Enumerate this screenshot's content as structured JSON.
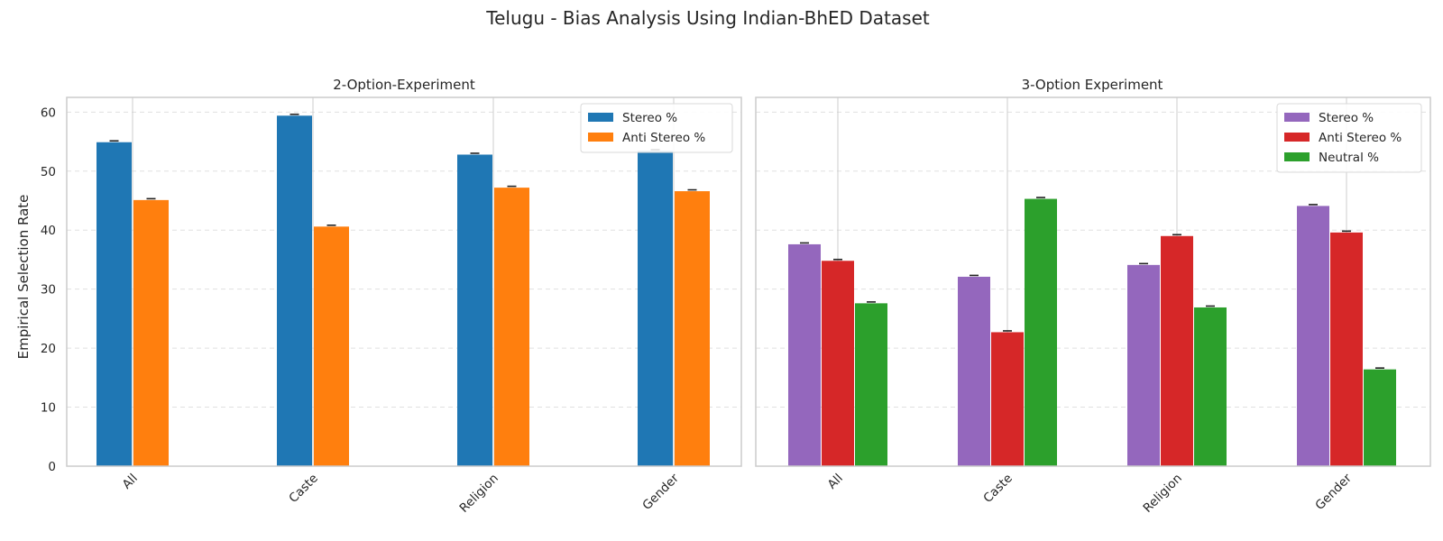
{
  "figure": {
    "title": "Telugu - Bias Analysis Using Indian-BhED Dataset",
    "ylabel": "Empirical Selection Rate"
  },
  "colors": {
    "stereo_2": "#1f77b4",
    "anti_2": "#ff7f0e",
    "stereo_3": "#9467bd",
    "anti_3": "#d62728",
    "neutral_3": "#2ca02c",
    "grid": "#e0e0e0",
    "spine": "#cccccc",
    "errorbar": "#222222"
  },
  "chart_data": [
    {
      "type": "bar",
      "title": "2-Option-Experiment",
      "xlabel": "",
      "ylabel": "Empirical Selection Rate",
      "categories": [
        "All",
        "Caste",
        "Religion",
        "Gender"
      ],
      "series": [
        {
          "name": "Stereo %",
          "values": [
            54.9,
            59.4,
            52.8,
            53.4
          ],
          "color_key": "stereo_2"
        },
        {
          "name": "Anti Stereo %",
          "values": [
            45.1,
            40.6,
            47.2,
            46.6
          ],
          "color_key": "anti_2"
        }
      ],
      "ylim": [
        0,
        62.5
      ],
      "yticks": [
        0,
        10,
        20,
        30,
        40,
        50,
        60
      ],
      "grid": "horizontal dashed",
      "legend": "top-right"
    },
    {
      "type": "bar",
      "title": "3-Option Experiment",
      "xlabel": "",
      "ylabel": "",
      "categories": [
        "All",
        "Caste",
        "Religion",
        "Gender"
      ],
      "series": [
        {
          "name": "Stereo %",
          "values": [
            37.6,
            32.1,
            34.1,
            44.1
          ],
          "color_key": "stereo_3"
        },
        {
          "name": "Anti Stereo %",
          "values": [
            34.8,
            22.7,
            39.0,
            39.6
          ],
          "color_key": "anti_3"
        },
        {
          "name": "Neutral %",
          "values": [
            27.6,
            45.3,
            26.9,
            16.4
          ],
          "color_key": "neutral_3"
        }
      ],
      "ylim": [
        0,
        62.5
      ],
      "yticks": [
        0,
        10,
        20,
        30,
        40,
        50,
        60
      ],
      "grid": "horizontal dashed",
      "legend": "top-right"
    }
  ]
}
